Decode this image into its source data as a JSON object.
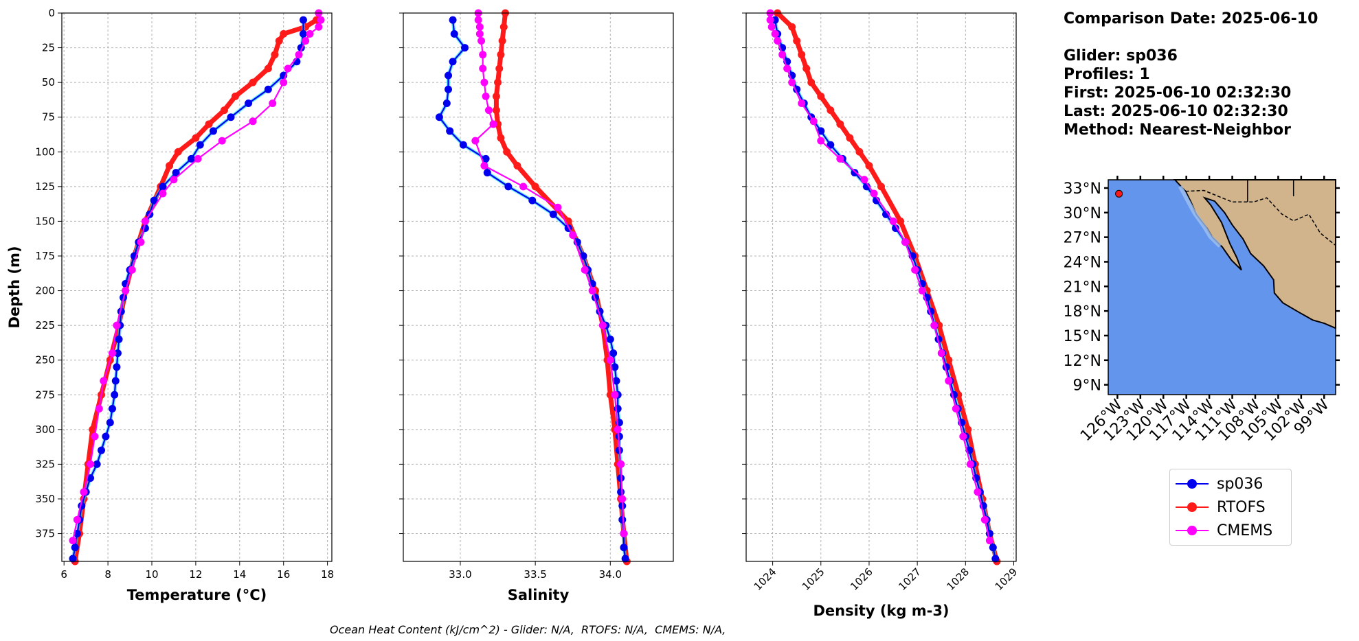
{
  "figure": {
    "info": {
      "comparison_date": "Comparison Date: 2025-06-10",
      "glider": "Glider: sp036",
      "profiles": "Profiles: 1",
      "first": "First: 2025-06-10 02:32:30",
      "last": "Last: 2025-06-10 02:32:30",
      "method": "Method: Nearest-Neighbor"
    },
    "legend": [
      {
        "name": "sp036",
        "color": "#0000ee"
      },
      {
        "name": "RTOFS",
        "color": "#ff1a1a"
      },
      {
        "name": "CMEMS",
        "color": "#ff00ff"
      }
    ],
    "footer": "Ocean Heat Content (kJ/cm^2) - Glider: N/A,  RTOFS: N/A,  CMEMS: N/A,",
    "map": {
      "lat_ticks": [
        "33°N",
        "30°N",
        "27°N",
        "24°N",
        "21°N",
        "18°N",
        "15°N",
        "12°N",
        "9°N"
      ],
      "lon_ticks": [
        "126°W",
        "123°W",
        "120°W",
        "117°W",
        "114°W",
        "111°W",
        "108°W",
        "105°W",
        "102°W",
        "99°W"
      ],
      "ocean_color": "#6495ed",
      "land_color": "#d2b48c",
      "glider_location": {
        "lat": 32.3,
        "lon": -125.8
      }
    }
  },
  "chart_data": [
    {
      "type": "line",
      "xlabel": "Temperature (°C)",
      "ylabel": "Depth (m)",
      "xlim": [
        5.9,
        18.2
      ],
      "ylim": [
        395,
        0
      ],
      "xticks": [
        6,
        8,
        10,
        12,
        14,
        16,
        18
      ],
      "yticks": [
        0,
        25,
        50,
        75,
        100,
        125,
        150,
        175,
        200,
        225,
        250,
        275,
        300,
        325,
        350,
        375
      ],
      "grid": true,
      "series": [
        {
          "name": "RTOFS",
          "color": "#ff1a1a",
          "depth": [
            5,
            10,
            15,
            20,
            30,
            40,
            50,
            60,
            70,
            80,
            90,
            100,
            110,
            125,
            150,
            175,
            200,
            225,
            250,
            275,
            300,
            325,
            350,
            375,
            395
          ],
          "values": [
            17.5,
            17.0,
            16.0,
            15.8,
            15.6,
            15.3,
            14.6,
            13.8,
            13.3,
            12.6,
            12.0,
            11.2,
            10.8,
            10.4,
            9.7,
            9.2,
            8.8,
            8.5,
            8.1,
            7.7,
            7.3,
            7.1,
            6.9,
            6.7,
            6.5
          ]
        },
        {
          "name": "CMEMS",
          "color": "#ff00ff",
          "depth": [
            0,
            5,
            10,
            15,
            20,
            30,
            40,
            50,
            65,
            78,
            92,
            105,
            120,
            130,
            150,
            165,
            185,
            200,
            225,
            245,
            265,
            285,
            305,
            325,
            345,
            365,
            380
          ],
          "values": [
            17.6,
            17.7,
            17.6,
            17.2,
            17.0,
            16.7,
            16.2,
            16.0,
            15.5,
            14.6,
            13.2,
            12.1,
            11.0,
            10.5,
            9.7,
            9.5,
            9.1,
            8.8,
            8.4,
            8.2,
            7.8,
            7.6,
            7.4,
            7.2,
            6.9,
            6.6,
            6.4
          ]
        },
        {
          "name": "sp036",
          "color": "#0000ee",
          "depth": [
            5,
            15,
            25,
            35,
            45,
            55,
            65,
            75,
            85,
            95,
            105,
            115,
            125,
            135,
            145,
            155,
            165,
            175,
            185,
            195,
            205,
            215,
            225,
            235,
            245,
            255,
            265,
            275,
            285,
            295,
            305,
            315,
            325,
            335,
            345,
            355,
            365,
            375,
            385,
            393
          ],
          "values": [
            16.9,
            16.9,
            16.8,
            16.6,
            16.0,
            15.3,
            14.4,
            13.6,
            12.8,
            12.2,
            11.8,
            11.1,
            10.5,
            10.1,
            9.9,
            9.7,
            9.4,
            9.2,
            9.0,
            8.8,
            8.7,
            8.6,
            8.55,
            8.5,
            8.45,
            8.4,
            8.35,
            8.3,
            8.2,
            8.1,
            7.9,
            7.7,
            7.5,
            7.2,
            7.0,
            6.8,
            6.7,
            6.6,
            6.5,
            6.4
          ]
        }
      ]
    },
    {
      "type": "line",
      "xlabel": "Salinity",
      "xlim": [
        32.62,
        34.42
      ],
      "ylim": [
        395,
        0
      ],
      "xticks": [
        33.0,
        33.5,
        34.0
      ],
      "xtick_labels": [
        "33.0",
        "33.5",
        "34.0"
      ],
      "grid": true,
      "series": [
        {
          "name": "RTOFS",
          "color": "#ff1a1a",
          "depth": [
            0,
            10,
            20,
            30,
            40,
            50,
            60,
            70,
            80,
            90,
            100,
            110,
            125,
            150,
            175,
            200,
            225,
            250,
            275,
            300,
            325,
            350,
            375,
            395
          ],
          "values": [
            33.3,
            33.29,
            33.28,
            33.27,
            33.26,
            33.25,
            33.24,
            33.24,
            33.25,
            33.27,
            33.31,
            33.38,
            33.5,
            33.72,
            33.82,
            33.9,
            33.95,
            33.98,
            34.0,
            34.03,
            34.05,
            34.07,
            34.09,
            34.11
          ]
        },
        {
          "name": "CMEMS",
          "color": "#ff00ff",
          "depth": [
            0,
            5,
            10,
            15,
            20,
            30,
            40,
            50,
            60,
            70,
            80,
            92,
            110,
            125,
            140,
            160,
            185,
            200,
            225,
            250,
            275,
            300,
            325,
            350,
            375
          ],
          "values": [
            33.12,
            33.12,
            33.13,
            33.13,
            33.14,
            33.15,
            33.15,
            33.16,
            33.17,
            33.19,
            33.22,
            33.1,
            33.16,
            33.42,
            33.65,
            33.75,
            33.83,
            33.88,
            33.95,
            34.0,
            34.03,
            34.05,
            34.07,
            34.08,
            34.09
          ]
        },
        {
          "name": "sp036",
          "color": "#0000ee",
          "depth": [
            5,
            15,
            25,
            35,
            45,
            55,
            65,
            75,
            85,
            95,
            105,
            115,
            125,
            135,
            145,
            155,
            165,
            175,
            185,
            195,
            205,
            215,
            225,
            235,
            245,
            255,
            265,
            275,
            285,
            295,
            305,
            315,
            325,
            335,
            345,
            355,
            365,
            375,
            385,
            393
          ],
          "values": [
            32.95,
            32.96,
            33.03,
            32.95,
            32.92,
            32.92,
            32.91,
            32.86,
            32.93,
            33.02,
            33.17,
            33.18,
            33.32,
            33.48,
            33.62,
            33.72,
            33.78,
            33.82,
            33.85,
            33.88,
            33.9,
            33.93,
            33.97,
            34.0,
            34.02,
            34.03,
            34.04,
            34.05,
            34.05,
            34.06,
            34.06,
            34.06,
            34.07,
            34.07,
            34.07,
            34.08,
            34.08,
            34.09,
            34.09,
            34.1
          ]
        }
      ]
    },
    {
      "type": "line",
      "xlabel": "Density (kg m-3)",
      "xlim": [
        1023.45,
        1029.05
      ],
      "ylim": [
        395,
        0
      ],
      "xticks": [
        1024,
        1025,
        1026,
        1027,
        1028,
        1029
      ],
      "grid": true,
      "series": [
        {
          "name": "RTOFS",
          "color": "#ff1a1a",
          "depth": [
            0,
            10,
            20,
            30,
            40,
            50,
            60,
            70,
            80,
            90,
            100,
            110,
            125,
            150,
            175,
            200,
            225,
            250,
            275,
            300,
            325,
            350,
            375,
            395
          ],
          "values": [
            1024.1,
            1024.4,
            1024.5,
            1024.6,
            1024.7,
            1024.8,
            1025.0,
            1025.2,
            1025.4,
            1025.6,
            1025.8,
            1026.0,
            1026.25,
            1026.65,
            1026.95,
            1027.2,
            1027.45,
            1027.65,
            1027.85,
            1028.05,
            1028.2,
            1028.35,
            1028.5,
            1028.65
          ]
        },
        {
          "name": "CMEMS",
          "color": "#ff00ff",
          "depth": [
            0,
            5,
            10,
            15,
            20,
            30,
            40,
            50,
            65,
            78,
            92,
            105,
            120,
            130,
            150,
            165,
            185,
            200,
            225,
            245,
            265,
            285,
            305,
            325,
            345,
            365,
            380
          ],
          "values": [
            1023.95,
            1023.95,
            1023.98,
            1024.05,
            1024.1,
            1024.2,
            1024.3,
            1024.4,
            1024.6,
            1024.85,
            1025.0,
            1025.4,
            1025.9,
            1026.1,
            1026.5,
            1026.75,
            1026.95,
            1027.1,
            1027.35,
            1027.5,
            1027.65,
            1027.8,
            1027.95,
            1028.1,
            1028.25,
            1028.4,
            1028.5
          ]
        },
        {
          "name": "sp036",
          "color": "#0000ee",
          "depth": [
            5,
            15,
            25,
            35,
            45,
            55,
            65,
            75,
            85,
            95,
            105,
            115,
            125,
            135,
            145,
            155,
            165,
            175,
            185,
            195,
            205,
            215,
            225,
            235,
            245,
            255,
            265,
            275,
            285,
            295,
            305,
            315,
            325,
            335,
            345,
            355,
            365,
            375,
            385,
            393
          ],
          "values": [
            1024.05,
            1024.1,
            1024.2,
            1024.3,
            1024.4,
            1024.5,
            1024.65,
            1024.8,
            1025.0,
            1025.2,
            1025.45,
            1025.7,
            1025.95,
            1026.15,
            1026.35,
            1026.55,
            1026.75,
            1026.9,
            1027.0,
            1027.1,
            1027.2,
            1027.28,
            1027.36,
            1027.44,
            1027.52,
            1027.6,
            1027.68,
            1027.76,
            1027.84,
            1027.92,
            1028.0,
            1028.08,
            1028.15,
            1028.22,
            1028.3,
            1028.37,
            1028.44,
            1028.5,
            1028.57,
            1028.62
          ]
        }
      ]
    }
  ]
}
